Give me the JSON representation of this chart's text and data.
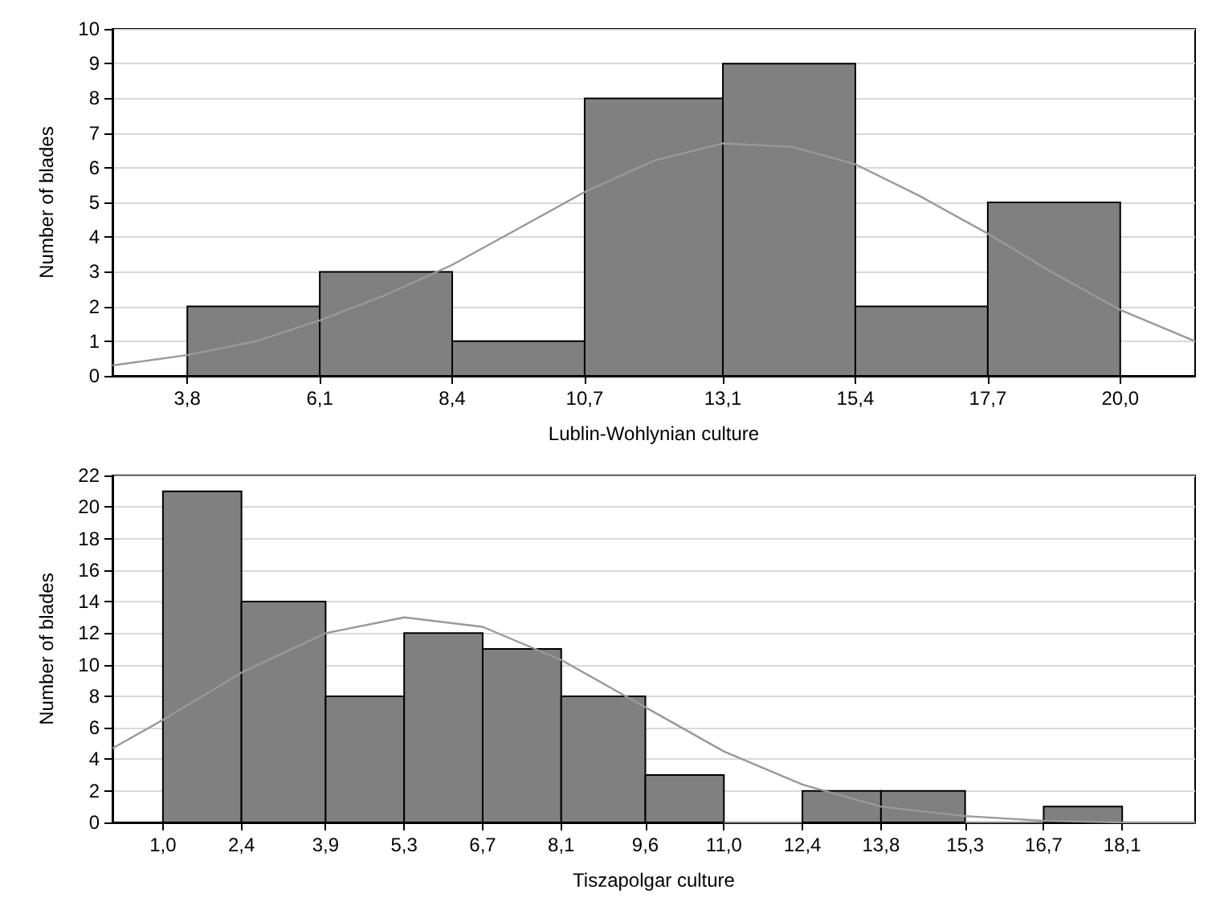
{
  "chart_data": [
    {
      "type": "histogram",
      "xlabel": "Lublin-Wohlynian culture",
      "ylabel": "Number of blades",
      "bins": [
        3.8,
        6.1,
        8.4,
        10.7,
        13.1,
        15.4,
        17.7,
        20.0
      ],
      "values": [
        2,
        3,
        1,
        8,
        9,
        2,
        5
      ],
      "color": "#808080",
      "series": [
        {
          "type": "line",
          "color": "#999999",
          "x": [
            2.5,
            3.8,
            5.0,
            6.1,
            7.2,
            8.4,
            9.5,
            10.7,
            11.9,
            13.1,
            14.3,
            15.4,
            16.5,
            17.7,
            18.8,
            20.0,
            21.3
          ],
          "values": [
            0.3,
            0.6,
            1.0,
            1.6,
            2.3,
            3.2,
            4.2,
            5.3,
            6.2,
            6.7,
            6.6,
            6.1,
            5.2,
            4.1,
            3.0,
            1.9,
            1.0
          ]
        }
      ],
      "marker": "none",
      "grid": "y",
      "xlim": [
        2.5,
        21.3
      ],
      "xticks": [
        {
          "value": 3.8,
          "label": "3,8"
        },
        {
          "value": 6.1,
          "label": "6,1"
        },
        {
          "value": 8.4,
          "label": "8,4"
        },
        {
          "value": 10.7,
          "label": "10,7"
        },
        {
          "value": 13.1,
          "label": "13,1"
        },
        {
          "value": 15.4,
          "label": "15,4"
        },
        {
          "value": 17.7,
          "label": "17,7"
        },
        {
          "value": 20.0,
          "label": "20,0"
        }
      ],
      "ylim": [
        0,
        10
      ],
      "yticks": [
        0,
        1,
        2,
        3,
        4,
        5,
        6,
        7,
        8,
        9,
        10
      ]
    },
    {
      "type": "histogram",
      "xlabel": "Tiszapolgar culture",
      "ylabel": "Number of blades",
      "bins": [
        1.0,
        2.4,
        3.9,
        5.3,
        6.7,
        8.1,
        9.6,
        11.0,
        12.4,
        13.8,
        15.3,
        16.7,
        18.1
      ],
      "values": [
        21,
        14,
        8,
        12,
        11,
        8,
        3,
        0,
        2,
        2,
        0,
        1
      ],
      "color": "#808080",
      "series": [
        {
          "type": "line",
          "color": "#999999",
          "x": [
            0.1,
            1.0,
            2.4,
            3.9,
            5.3,
            6.7,
            8.1,
            9.6,
            11.0,
            12.4,
            13.8,
            15.3,
            16.7,
            18.1,
            19.4
          ],
          "values": [
            4.7,
            6.5,
            9.5,
            12.0,
            13.0,
            12.4,
            10.3,
            7.3,
            4.5,
            2.4,
            1.0,
            0.4,
            0.1,
            0.0,
            0.0
          ]
        }
      ],
      "marker": "none",
      "grid": "y",
      "xlim": [
        0.1,
        19.4
      ],
      "xticks": [
        {
          "value": 1.0,
          "label": "1,0"
        },
        {
          "value": 2.4,
          "label": "2,4"
        },
        {
          "value": 3.9,
          "label": "3,9"
        },
        {
          "value": 5.3,
          "label": "5,3"
        },
        {
          "value": 6.7,
          "label": "6,7"
        },
        {
          "value": 8.1,
          "label": "8,1"
        },
        {
          "value": 9.6,
          "label": "9,6"
        },
        {
          "value": 11.0,
          "label": "11,0"
        },
        {
          "value": 12.4,
          "label": "12,4"
        },
        {
          "value": 13.8,
          "label": "13,8"
        },
        {
          "value": 15.3,
          "label": "15,3"
        },
        {
          "value": 16.7,
          "label": "16,7"
        },
        {
          "value": 18.1,
          "label": "18,1"
        }
      ],
      "ylim": [
        0,
        22
      ],
      "yticks": [
        0,
        2,
        4,
        6,
        8,
        10,
        12,
        14,
        16,
        18,
        20,
        22
      ]
    }
  ]
}
